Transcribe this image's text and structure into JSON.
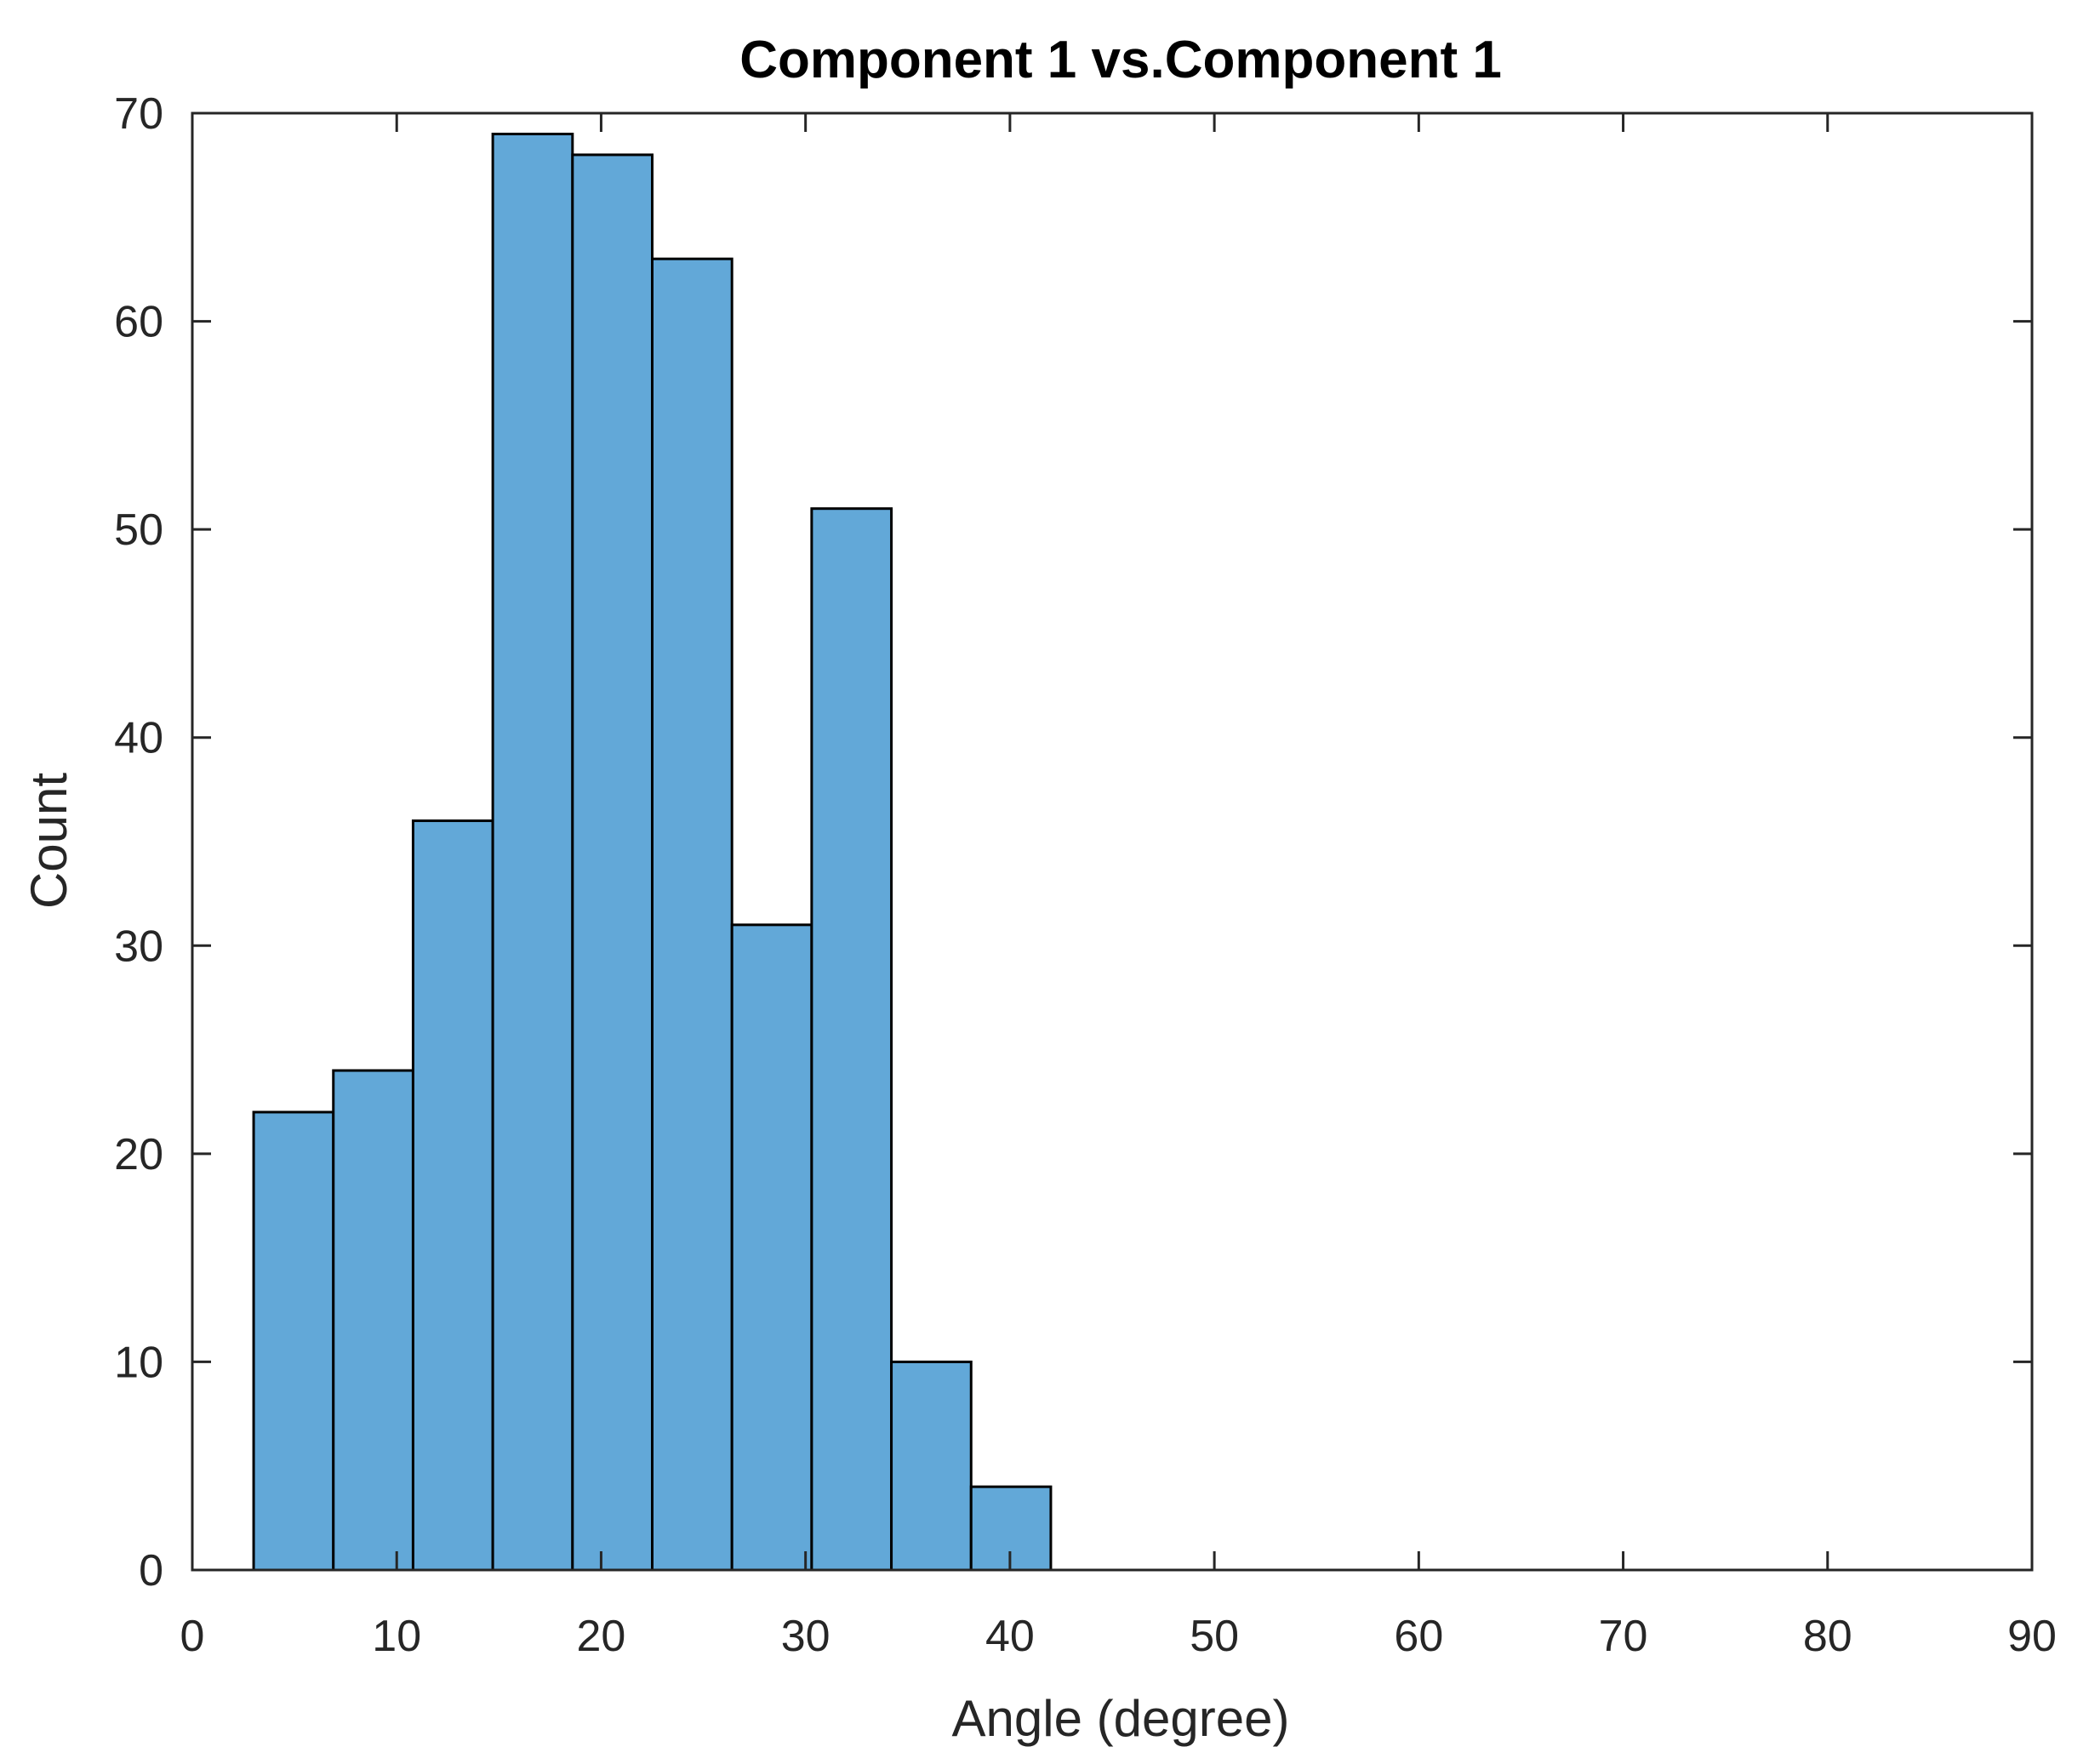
{
  "chart_data": {
    "type": "bar",
    "subtype": "histogram",
    "title": "Component 1 vs.Component 1",
    "xlabel": "Angle (degree)",
    "ylabel": "Count",
    "xlim": [
      0,
      90
    ],
    "ylim": [
      0,
      70
    ],
    "xticks": [
      "0",
      "10",
      "20",
      "30",
      "40",
      "50",
      "60",
      "70",
      "80",
      "90"
    ],
    "yticks": [
      "0",
      "10",
      "20",
      "30",
      "40",
      "50",
      "60",
      "70"
    ],
    "bin_edges": [
      3.0,
      6.9,
      10.8,
      14.7,
      18.6,
      22.5,
      26.4,
      30.3,
      34.2,
      38.1,
      42.0
    ],
    "values": [
      22,
      24,
      36,
      69,
      68,
      63,
      31,
      51,
      10,
      4
    ],
    "bar_color": "#62a8d8",
    "edge_color": "#000000",
    "grid": false,
    "legend": false
  }
}
